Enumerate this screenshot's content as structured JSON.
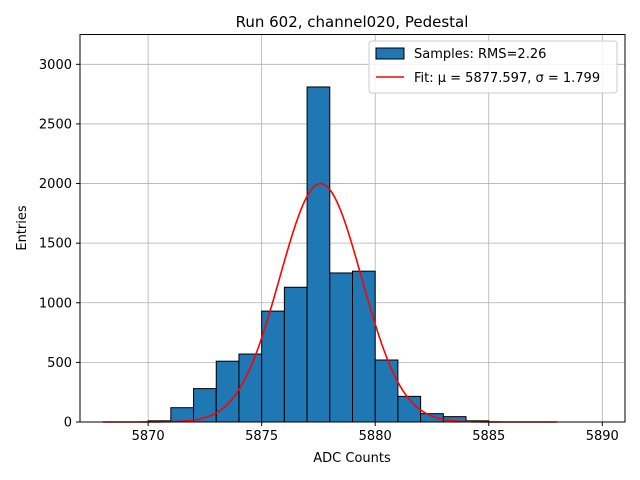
{
  "chart_data": {
    "type": "bar",
    "title": "Run 602, channel020, Pedestal",
    "xlabel": "ADC Counts",
    "ylabel": "Entries",
    "xlim": [
      5867,
      5891
    ],
    "ylim": [
      0,
      3250
    ],
    "xticks": [
      5870,
      5875,
      5880,
      5885,
      5890
    ],
    "yticks": [
      0,
      500,
      1000,
      1500,
      2000,
      2500,
      3000
    ],
    "grid": true,
    "legend_position": "top-right",
    "histogram": {
      "name": "Samples: RMS=2.26",
      "color": "#1f77b4",
      "bin_edges": [
        5870,
        5871,
        5872,
        5873,
        5874,
        5875,
        5876,
        5877,
        5878,
        5879,
        5880,
        5881,
        5882,
        5883,
        5884,
        5885
      ],
      "counts": [
        10,
        120,
        280,
        510,
        570,
        930,
        1130,
        2810,
        1250,
        1265,
        520,
        215,
        70,
        45,
        10
      ]
    },
    "fit": {
      "name": "Fit: μ = 5877.597, σ = 1.799",
      "color": "#ff0000",
      "mu": 5877.597,
      "sigma": 1.799,
      "amplitude": 2000,
      "x_range": [
        5868,
        5888
      ]
    }
  }
}
